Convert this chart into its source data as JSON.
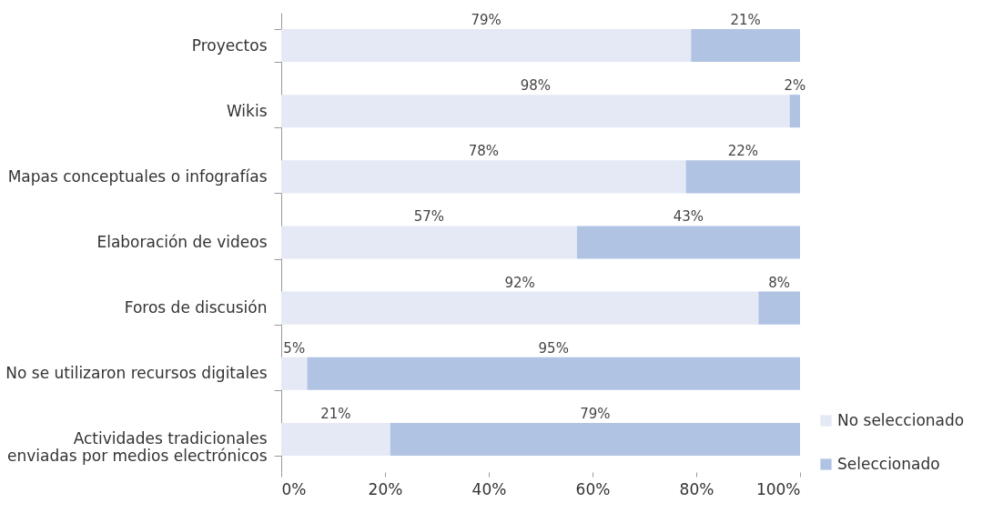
{
  "chart_data": {
    "type": "bar",
    "orientation": "horizontal",
    "stacked": true,
    "categories": [
      "Proyectos",
      "Wikis",
      "Mapas conceptuales o infografías",
      "Elaboración de videos",
      "Foros de discusión",
      "No se utilizaron recursos digitales",
      "Actividades tradicionales\nenviadas por medios electrónicos"
    ],
    "series": [
      {
        "name": "No seleccionado",
        "color": "#e4e9f5",
        "values": [
          79,
          98,
          78,
          57,
          92,
          5,
          21
        ],
        "value_labels": [
          "79%",
          "98%",
          "78%",
          "57%",
          "92%",
          "5%",
          "21%"
        ]
      },
      {
        "name": "Seleccionado",
        "color": "#b0c3e3",
        "values": [
          21,
          2,
          22,
          43,
          8,
          95,
          79
        ],
        "value_labels": [
          "21%",
          "2%",
          "22%",
          "43%",
          "8%",
          "95%",
          "79%"
        ]
      }
    ],
    "xlim": [
      0,
      100
    ],
    "xticks": [
      {
        "value": 0,
        "label": "0%"
      },
      {
        "value": 20,
        "label": "20%"
      },
      {
        "value": 40,
        "label": "40%"
      },
      {
        "value": 60,
        "label": "60%"
      },
      {
        "value": 80,
        "label": "80%"
      },
      {
        "value": 100,
        "label": "100%"
      }
    ],
    "grid": false,
    "legend": "bottom right"
  }
}
